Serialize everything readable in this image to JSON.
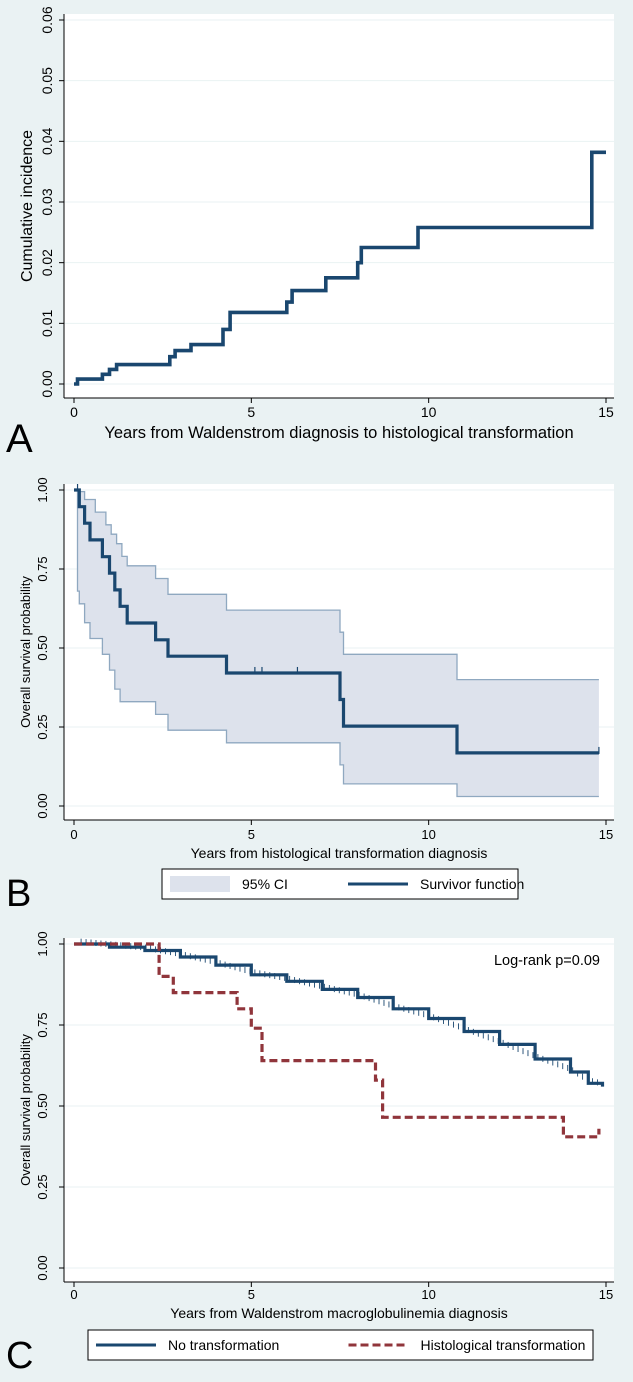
{
  "colors": {
    "background": "#eaf2f3",
    "plot_bg": "#ffffff",
    "navy": "#1a476f",
    "red": "#90353b",
    "ci_fill": "#dde2ec",
    "ci_line": "#8fa8c0",
    "grid": "#eaf2f3"
  },
  "chart_data": [
    {
      "panel_letter": "A",
      "type": "line",
      "step": true,
      "xlabel": "Years from Waldenstrom diagnosis to histological transformation",
      "ylabel": "Cumulative incidence",
      "xlim": [
        0,
        15
      ],
      "ylim": [
        0,
        0.06
      ],
      "x_ticks": [
        0,
        5,
        10,
        15
      ],
      "x_tick_labels": [
        "0",
        "5",
        "10",
        "15"
      ],
      "y_ticks": [
        0,
        0.01,
        0.02,
        0.03,
        0.04,
        0.05,
        0.06
      ],
      "y_tick_labels": [
        "0.00",
        "0.01",
        "0.02",
        "0.03",
        "0.04",
        "0.05",
        "0.06"
      ],
      "grid": true,
      "series": [
        {
          "color": "#1a476f",
          "points": [
            [
              0,
              0
            ],
            [
              0.1,
              0.0008
            ],
            [
              0.8,
              0.0016
            ],
            [
              1.0,
              0.0024
            ],
            [
              1.2,
              0.0032
            ],
            [
              2.7,
              0.0045
            ],
            [
              2.85,
              0.0055
            ],
            [
              3.3,
              0.0065
            ],
            [
              4.2,
              0.009
            ],
            [
              4.4,
              0.0118
            ],
            [
              6.0,
              0.0135
            ],
            [
              6.15,
              0.0154
            ],
            [
              7.1,
              0.0175
            ],
            [
              8.0,
              0.02
            ],
            [
              8.1,
              0.0225
            ],
            [
              9.7,
              0.0258
            ],
            [
              14.6,
              0.0382
            ],
            [
              15.0,
              0.0382
            ]
          ]
        }
      ]
    },
    {
      "panel_letter": "B",
      "type": "area",
      "step": true,
      "xlabel": "Years from histological transformation diagnosis",
      "ylabel": "Overall survival probability",
      "xlim": [
        0,
        15
      ],
      "ylim": [
        0,
        1
      ],
      "x_ticks": [
        0,
        5,
        10,
        15
      ],
      "x_tick_labels": [
        "0",
        "5",
        "10",
        "15"
      ],
      "y_ticks": [
        0,
        0.25,
        0.5,
        0.75,
        1
      ],
      "y_tick_labels": [
        "0.00",
        "0.25",
        "0.50",
        "0.75",
        "1.00"
      ],
      "grid": true,
      "legend": {
        "position": "bottom",
        "items": [
          {
            "label": "95% CI",
            "kind": "area"
          },
          {
            "label": "Survivor function",
            "kind": "line"
          }
        ]
      },
      "survival": [
        [
          0,
          1.0
        ],
        [
          0.1,
          1.0
        ],
        [
          0.15,
          0.947
        ],
        [
          0.3,
          0.895
        ],
        [
          0.45,
          0.842
        ],
        [
          0.8,
          0.789
        ],
        [
          1.0,
          0.737
        ],
        [
          1.15,
          0.684
        ],
        [
          1.3,
          0.632
        ],
        [
          1.5,
          0.579
        ],
        [
          2.3,
          0.526
        ],
        [
          2.65,
          0.474
        ],
        [
          4.3,
          0.421
        ],
        [
          7.5,
          0.337
        ],
        [
          7.6,
          0.253
        ],
        [
          10.8,
          0.168
        ],
        [
          14.8,
          0.168
        ]
      ],
      "ci_upper": [
        [
          0,
          1.0
        ],
        [
          0.15,
          0.995
        ],
        [
          0.3,
          0.97
        ],
        [
          0.6,
          0.93
        ],
        [
          0.9,
          0.89
        ],
        [
          1.05,
          0.86
        ],
        [
          1.2,
          0.83
        ],
        [
          1.35,
          0.79
        ],
        [
          1.5,
          0.76
        ],
        [
          2.3,
          0.72
        ],
        [
          2.65,
          0.67
        ],
        [
          4.3,
          0.62
        ],
        [
          7.5,
          0.55
        ],
        [
          7.6,
          0.48
        ],
        [
          10.8,
          0.4
        ],
        [
          14.8,
          0.4
        ]
      ],
      "ci_lower": [
        [
          0,
          1.0
        ],
        [
          0.1,
          0.68
        ],
        [
          0.15,
          0.64
        ],
        [
          0.3,
          0.58
        ],
        [
          0.45,
          0.53
        ],
        [
          0.8,
          0.48
        ],
        [
          1.0,
          0.43
        ],
        [
          1.15,
          0.37
        ],
        [
          1.3,
          0.33
        ],
        [
          2.3,
          0.29
        ],
        [
          2.65,
          0.24
        ],
        [
          4.3,
          0.2
        ],
        [
          7.5,
          0.13
        ],
        [
          7.6,
          0.07
        ],
        [
          10.8,
          0.03
        ],
        [
          14.8,
          0.03
        ]
      ],
      "censor_ticks": [
        0.1,
        5.1,
        5.3,
        6.3,
        14.8
      ]
    },
    {
      "panel_letter": "C",
      "type": "line",
      "step": true,
      "xlabel": "Years from Waldenstrom macroglobulinemia diagnosis",
      "ylabel": "Overall survival probability",
      "xlim": [
        0,
        15
      ],
      "ylim": [
        0,
        1
      ],
      "x_ticks": [
        0,
        5,
        10,
        15
      ],
      "x_tick_labels": [
        "0",
        "5",
        "10",
        "15"
      ],
      "y_ticks": [
        0,
        0.25,
        0.5,
        0.75,
        1
      ],
      "y_tick_labels": [
        "0.00",
        "0.25",
        "0.50",
        "0.75",
        "1.00"
      ],
      "grid": true,
      "annotation": "Log-rank p=0.09",
      "legend": {
        "position": "bottom",
        "items": [
          {
            "label": "No transformation",
            "kind": "line"
          },
          {
            "label": "Histological transformation",
            "kind": "dashed"
          }
        ]
      },
      "series": [
        {
          "name": "No transformation",
          "color": "#1a476f",
          "dashed": false,
          "points": [
            [
              0,
              1.0
            ],
            [
              1,
              0.99
            ],
            [
              2,
              0.98
            ],
            [
              3,
              0.96
            ],
            [
              4,
              0.935
            ],
            [
              5,
              0.905
            ],
            [
              6,
              0.885
            ],
            [
              7,
              0.86
            ],
            [
              8,
              0.835
            ],
            [
              9,
              0.8
            ],
            [
              10,
              0.77
            ],
            [
              11,
              0.73
            ],
            [
              12,
              0.69
            ],
            [
              13,
              0.645
            ],
            [
              14,
              0.605
            ],
            [
              14.5,
              0.57
            ],
            [
              14.9,
              0.56
            ]
          ]
        },
        {
          "name": "Histological transformation",
          "color": "#90353b",
          "dashed": true,
          "points": [
            [
              0,
              1.0
            ],
            [
              2.4,
              0.9
            ],
            [
              2.8,
              0.85
            ],
            [
              4.6,
              0.8
            ],
            [
              5.0,
              0.74
            ],
            [
              5.3,
              0.64
            ],
            [
              8.5,
              0.58
            ],
            [
              8.7,
              0.465
            ],
            [
              13.8,
              0.405
            ],
            [
              14.5,
              0.405
            ],
            [
              14.8,
              0.43
            ]
          ]
        }
      ]
    }
  ]
}
